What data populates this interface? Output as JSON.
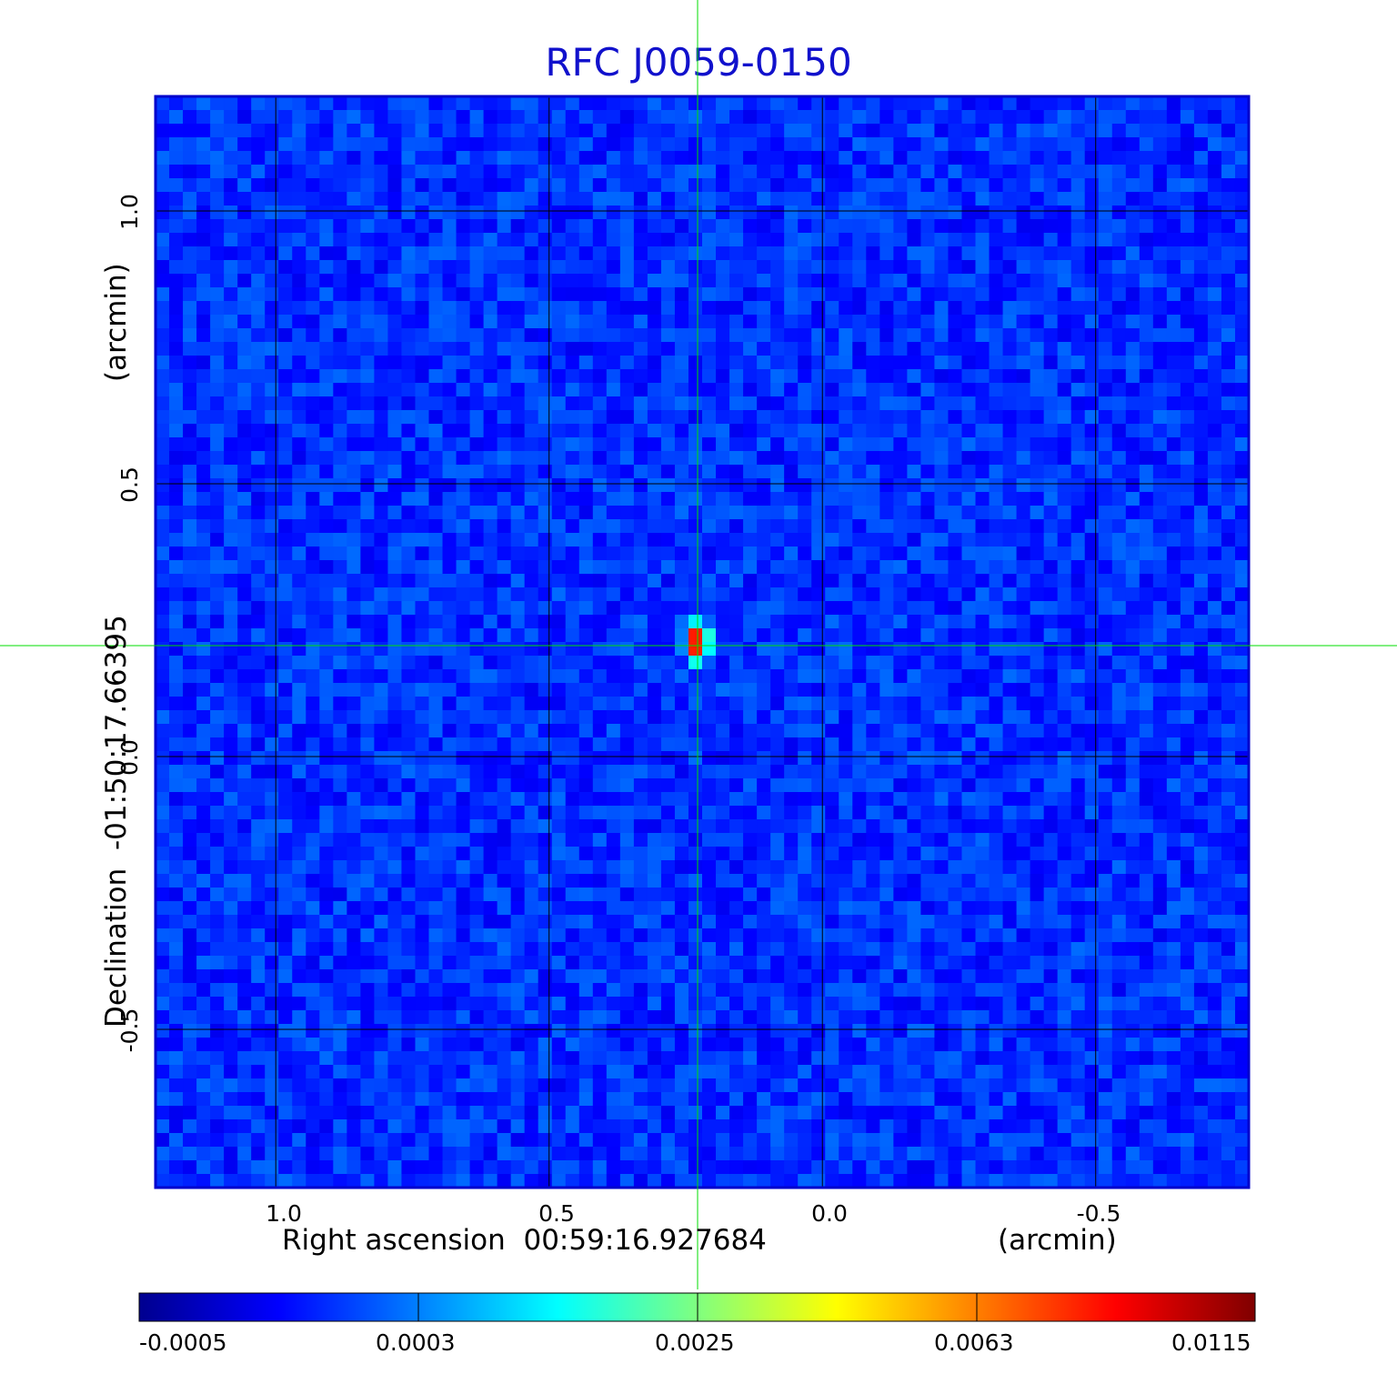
{
  "chart_data": {
    "type": "heatmap",
    "title": "RFC J0059-0150",
    "xlabel": "Right ascension  00:59:16.927684",
    "xunit": "(arcmin)",
    "ylabel": "Declination  -01:50:17.66395",
    "yunit": "(arcmin)",
    "xlim": [
      1.22,
      -0.78
    ],
    "ylim": [
      -0.79,
      1.21
    ],
    "x_ticks": [
      "1.0",
      "0.5",
      "0.0",
      "-0.5"
    ],
    "x_tick_values": [
      1.0,
      0.5,
      0.0,
      -0.5
    ],
    "y_ticks": [
      "-0.5",
      "0.0",
      "0.5",
      "1.0"
    ],
    "y_tick_values": [
      -0.5,
      0.0,
      0.5,
      1.0
    ],
    "grid": true,
    "crosshair": {
      "x": 0.23,
      "y": 0.21,
      "color": "#00dd00"
    },
    "source_peak": {
      "x": 0.23,
      "y": 0.21,
      "value": 0.0115
    },
    "colorbar": {
      "ticks": [
        "-0.0005",
        "0.0003",
        "0.0025",
        "0.0063",
        "0.0115"
      ],
      "colormap": "jet"
    },
    "colors": {
      "title": "#1111cc",
      "frame": "#0000cc",
      "grid": "#000000"
    }
  }
}
